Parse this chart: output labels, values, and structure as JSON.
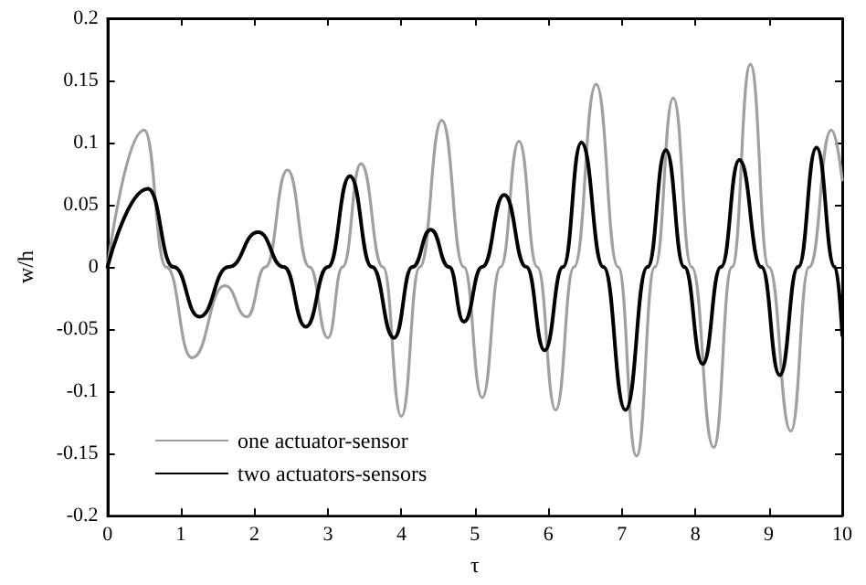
{
  "chart_data": {
    "type": "line",
    "xlabel": "τ",
    "ylabel": "w/h",
    "xlim": [
      0,
      10
    ],
    "xticks": [
      0,
      1,
      2,
      3,
      4,
      5,
      6,
      7,
      8,
      9,
      10
    ],
    "ylim": [
      -0.2,
      0.2
    ],
    "yticks": [
      -0.2,
      -0.15,
      -0.1,
      -0.05,
      0,
      0.05,
      0.1,
      0.15,
      0.2
    ],
    "grid": false,
    "legend": "bottom left",
    "marker": "none",
    "line_style": "solid",
    "series": [
      {
        "name": "one actuator-sensor",
        "color": "#a0a0a0",
        "x": [
          0,
          0.5,
          0.8,
          1.15,
          1.6,
          1.9,
          2.15,
          2.45,
          2.75,
          3.0,
          3.2,
          3.45,
          3.75,
          4.0,
          4.25,
          4.55,
          4.85,
          5.1,
          5.35,
          5.6,
          5.85,
          6.1,
          6.35,
          6.65,
          6.95,
          7.2,
          7.45,
          7.7,
          7.95,
          8.25,
          8.5,
          8.75,
          9.0,
          9.3,
          9.55,
          9.85,
          10
        ],
        "values": [
          0,
          0.11,
          0,
          -0.073,
          -0.015,
          -0.04,
          0,
          0.078,
          0,
          -0.057,
          0,
          0.083,
          0,
          -0.12,
          0,
          0.118,
          0,
          -0.105,
          0,
          0.101,
          0,
          -0.115,
          0,
          0.147,
          0,
          -0.152,
          0,
          0.136,
          0,
          -0.145,
          0,
          0.163,
          0,
          -0.132,
          0,
          0.11,
          0.07
        ]
      },
      {
        "name": "two actuators-sensors",
        "color": "#000000",
        "x": [
          0,
          0.55,
          0.9,
          1.25,
          1.65,
          2.05,
          2.4,
          2.7,
          3.0,
          3.3,
          3.6,
          3.9,
          4.15,
          4.4,
          4.65,
          4.85,
          5.1,
          5.4,
          5.7,
          5.95,
          6.2,
          6.45,
          6.75,
          7.05,
          7.35,
          7.6,
          7.85,
          8.1,
          8.35,
          8.6,
          8.9,
          9.15,
          9.4,
          9.65,
          9.9,
          10
        ],
        "values": [
          0,
          0.063,
          0,
          -0.04,
          0,
          0.028,
          0,
          -0.048,
          0,
          0.073,
          0,
          -0.057,
          0,
          0.03,
          0,
          -0.044,
          0,
          0.058,
          0,
          -0.067,
          0,
          0.1,
          0,
          -0.115,
          0,
          0.094,
          0,
          -0.078,
          0,
          0.086,
          0,
          -0.087,
          0,
          0.096,
          0,
          -0.055
        ]
      }
    ]
  }
}
